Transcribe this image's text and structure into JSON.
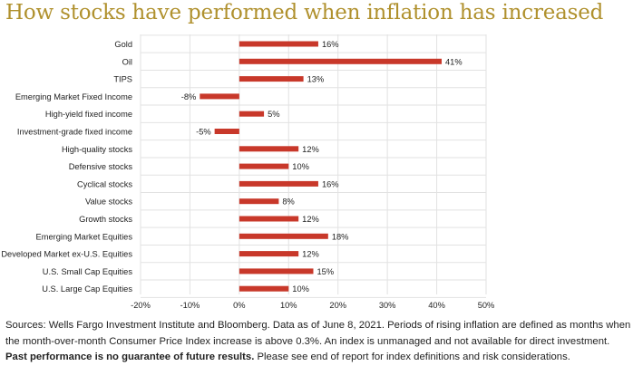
{
  "title": "How stocks have performed when inflation has increased",
  "chart_data": {
    "type": "bar",
    "orientation": "horizontal",
    "title": "How stocks have performed when inflation has increased",
    "categories": [
      "Gold",
      "Oil",
      "TIPS",
      "Emerging Market Fixed Income",
      "High-yield fixed income",
      "Investment-grade fixed income",
      "High-quality stocks",
      "Defensive stocks",
      "Cyclical stocks",
      "Value stocks",
      "Growth stocks",
      "Emerging Market Equities",
      "Developed Market ex-U.S. Equities",
      "U.S. Small Cap Equities",
      "U.S. Large Cap Equities"
    ],
    "values": [
      16,
      41,
      13,
      -8,
      5,
      -5,
      12,
      10,
      16,
      8,
      12,
      18,
      12,
      15,
      10
    ],
    "value_labels": [
      "16%",
      "41%",
      "13%",
      "-8%",
      "5%",
      "-5%",
      "12%",
      "10%",
      "16%",
      "8%",
      "12%",
      "18%",
      "12%",
      "15%",
      "10%"
    ],
    "xlim": [
      -20,
      50
    ],
    "xticks": [
      -20,
      -10,
      0,
      10,
      20,
      30,
      40,
      50
    ],
    "xtick_labels": [
      "-20%",
      "-10%",
      "0%",
      "10%",
      "20%",
      "30%",
      "40%",
      "50%"
    ],
    "xlabel": "",
    "ylabel": "",
    "grid": true,
    "legend": "none",
    "bar_color": "#c8382a"
  },
  "footnote": {
    "part1": "Sources: Wells Fargo Investment Institute and Bloomberg. Data as of June 8, 2021. Periods of rising inflation are defined as months when the month-over-month Consumer Price Index increase is above 0.3%. An index is unmanaged and not available for direct investment. ",
    "bold": "Past performance is no guarantee of future results.",
    "part2": " Please see end of report for index definitions and risk considerations."
  },
  "colors": {
    "title": "#b0912e",
    "bar": "#c8382a",
    "grid": "#e2e2e2"
  }
}
